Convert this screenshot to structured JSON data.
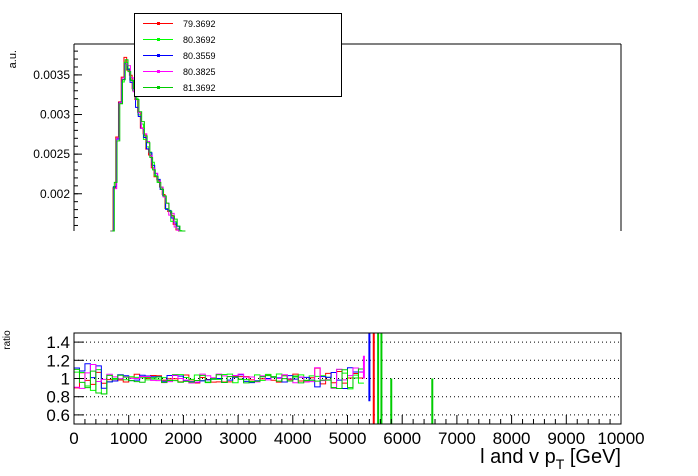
{
  "chart_data": [
    {
      "type": "line",
      "panel": "top",
      "ylabel": "a.u.",
      "xlim": [
        0,
        10000
      ],
      "ylim_visible": [
        0.0015,
        0.0039
      ],
      "yticks": [
        0.002,
        0.0025,
        0.003,
        0.0035
      ],
      "ytick_labels": [
        "0.002",
        "0.0025",
        "0.003",
        "0.0035"
      ],
      "legend_position": "top-left",
      "series": [
        {
          "name": "79.3692",
          "color": "#ff0000"
        },
        {
          "name": "80.3692",
          "color": "#00ff00"
        },
        {
          "name": "80.3559",
          "color": "#0000ff"
        },
        {
          "name": "80.3825",
          "color": "#ff00ff"
        },
        {
          "name": "81.3692",
          "color": "#00cc00"
        }
      ],
      "x": [
        700,
        750,
        800,
        850,
        900,
        950,
        1000,
        1050,
        1100,
        1150,
        1200,
        1250,
        1300,
        1350,
        1400,
        1450,
        1500,
        1550,
        1600,
        1650,
        1700,
        1750,
        1800,
        1850,
        1900,
        1950,
        2000
      ],
      "values": [
        0.00145,
        0.0021,
        0.0027,
        0.0031,
        0.00345,
        0.0037,
        0.0036,
        0.00345,
        0.0033,
        0.00315,
        0.003,
        0.00285,
        0.00272,
        0.0026,
        0.00248,
        0.00236,
        0.00225,
        0.00214,
        0.00204,
        0.00195,
        0.00186,
        0.00178,
        0.0017,
        0.00163,
        0.00157,
        0.00151,
        0.00146
      ]
    },
    {
      "type": "line",
      "panel": "ratio",
      "ylabel": "ratio",
      "xlabel": "l and v p_T [GeV]",
      "xlim": [
        0,
        10000
      ],
      "ylim": [
        0.5,
        1.5
      ],
      "yticks": [
        0.6,
        0.8,
        1,
        1.2,
        1.4
      ],
      "ytick_labels": [
        "0.6",
        "0.8",
        "1",
        "1.2",
        "1.4"
      ],
      "xticks": [
        0,
        1000,
        2000,
        3000,
        4000,
        5000,
        6000,
        7000,
        8000,
        9000,
        10000
      ],
      "xtick_labels": [
        "0",
        "1000",
        "2000",
        "3000",
        "4000",
        "5000",
        "6000",
        "7000",
        "8000",
        "9000",
        "10000"
      ],
      "grid": "horizontal dotted",
      "bin_width": 100,
      "ratio_range": [
        0,
        5200
      ],
      "spikes": [
        {
          "x": 5300,
          "low": 1.0,
          "high": 1.25,
          "color": "#ff00ff"
        },
        {
          "x": 5400,
          "low": 0.75,
          "high": 1.5,
          "color": "#0000ff"
        },
        {
          "x": 5480,
          "low": 0.5,
          "high": 1.5,
          "color": "#ff0000"
        },
        {
          "x": 5560,
          "low": 0.5,
          "high": 1.5,
          "color": "#00cc00"
        },
        {
          "x": 5620,
          "low": 0.5,
          "high": 1.5,
          "color": "#00cc00"
        },
        {
          "x": 5800,
          "low": 0.5,
          "high": 1.0,
          "color": "#00cc00"
        },
        {
          "x": 6550,
          "low": 0.5,
          "high": 1.0,
          "color": "#00cc00"
        }
      ]
    }
  ]
}
